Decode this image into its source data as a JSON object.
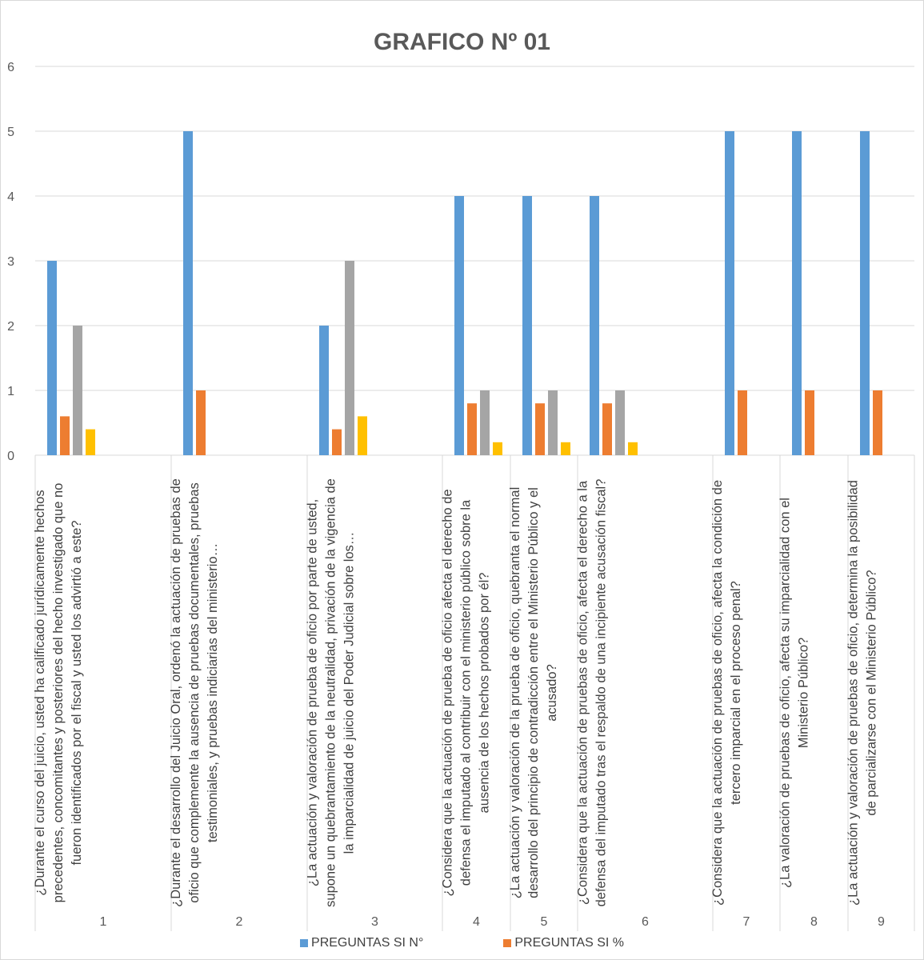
{
  "chart_data": {
    "type": "bar",
    "title": "GRAFICO Nº 01",
    "xlabel": "",
    "ylabel": "",
    "ylim": [
      0,
      6
    ],
    "yticks": [
      0,
      1,
      2,
      3,
      4,
      5,
      6
    ],
    "grid": true,
    "legend_position": "bottom",
    "categories": [
      {
        "number": "1",
        "question": "¿Durante el curso del juicio, usted ha calificado jurídicamente hechos precedentes, concomitantes  y posteriores del hecho investigado que no fueron identificados por el fiscal y usted los advirtió a este?"
      },
      {
        "number": "2",
        "question": "¿Durante el desarrollo del Juicio Oral, ordenó la actuación de pruebas de oficio que complemente la ausencia de pruebas documentales, pruebas testimoniales, y pruebas indiciarias del ministerio…"
      },
      {
        "number": "3",
        "question": "¿La actuación y valoración de prueba de oficio por parte de usted, supone un quebrantamiento de la neutralidad, privación de la vigencia de la imparcialidad de juicio del Poder Judicial sobre los…"
      },
      {
        "number": "4",
        "question": "¿Considera que la actuación de prueba de oficio afecta el derecho de defensa el imputado al contribuir con el ministerio público sobre la ausencia de los hechos probados por él?"
      },
      {
        "number": "5",
        "question": "¿La actuación y valoración de la prueba de oficio, quebranta el normal desarrollo del principio de contradicción entre el Ministerio Público y el acusado?"
      },
      {
        "number": "6",
        "question": "¿Considera que la actuación de pruebas de oficio, afecta el derecho a la defensa del imputado tras el respaldo de una incipiente acusación fiscal?"
      },
      {
        "number": "7",
        "question": "¿Considera que la actuación de pruebas de oficio, afecta la condición de tercero imparcial en el proceso penal?"
      },
      {
        "number": "8",
        "question": "¿La valoración de pruebas de oficio, afecta su imparcialidad con el Ministerio Público?"
      },
      {
        "number": "9",
        "question": "¿La actuación y valoración de pruebas de oficio, determina la posibilidad de parcializarse con el Ministerio Público?"
      }
    ],
    "series": [
      {
        "name": "PREGUNTAS SI N°",
        "color": "#5b9bd5",
        "values": [
          3,
          5,
          2,
          4,
          4,
          4,
          5,
          5,
          5
        ]
      },
      {
        "name": "PREGUNTAS SI %",
        "color": "#ed7d31",
        "values": [
          0.6,
          1,
          0.4,
          0.8,
          0.8,
          0.8,
          1,
          1,
          1
        ]
      },
      {
        "name": "",
        "color": "#a5a5a5",
        "values": [
          2,
          0,
          3,
          1,
          1,
          1,
          0,
          0,
          0
        ]
      },
      {
        "name": "",
        "color": "#ffc000",
        "values": [
          0.4,
          0,
          0.6,
          0.2,
          0.2,
          0.2,
          0,
          0,
          0
        ]
      }
    ]
  }
}
